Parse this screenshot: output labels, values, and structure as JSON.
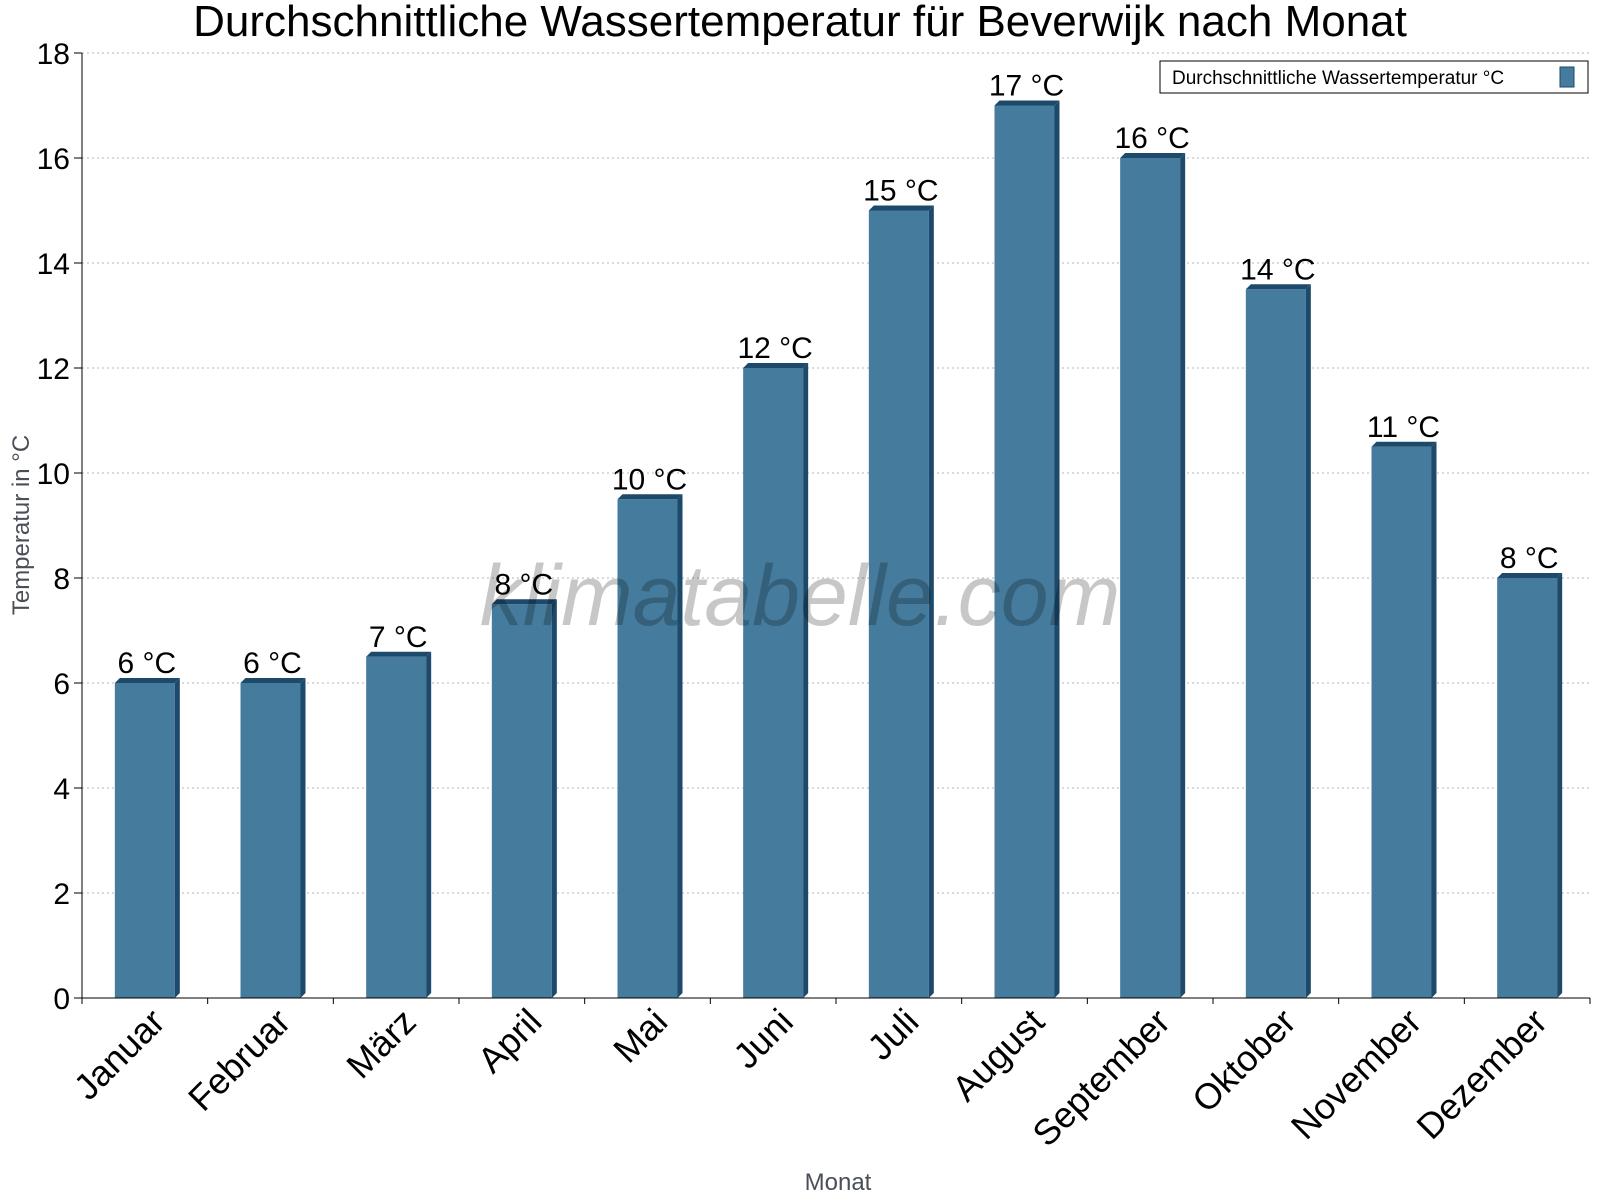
{
  "chart_data": {
    "type": "bar",
    "title": "Durchschnittliche Wassertemperatur für Beverwijk nach Monat",
    "xlabel": "Monat",
    "ylabel": "Temperatur in °C",
    "ylim": [
      0,
      18
    ],
    "yticks": [
      "0",
      "2",
      "4",
      "6",
      "8",
      "10",
      "12",
      "14",
      "16",
      "18"
    ],
    "grid": true,
    "legend_position": "top-right",
    "categories": [
      "Januar",
      "Februar",
      "März",
      "April",
      "Mai",
      "Juni",
      "Juli",
      "August",
      "September",
      "Oktober",
      "November",
      "Dezember"
    ],
    "series": [
      {
        "name": "Durchschnittliche Wassertemperatur °C",
        "values": [
          6,
          6,
          6.5,
          7.5,
          9.5,
          12,
          15,
          17,
          16,
          13.5,
          10.5,
          8
        ],
        "labels": [
          "6 °C",
          "6 °C",
          "7 °C",
          "8 °C",
          "10 °C",
          "12 °C",
          "15 °C",
          "17 °C",
          "16 °C",
          "14 °C",
          "11 °C",
          "8 °C"
        ],
        "color": "#457b9d",
        "shade_color": "#1d4a6b"
      }
    ]
  },
  "watermark": "klimatabelle.com"
}
